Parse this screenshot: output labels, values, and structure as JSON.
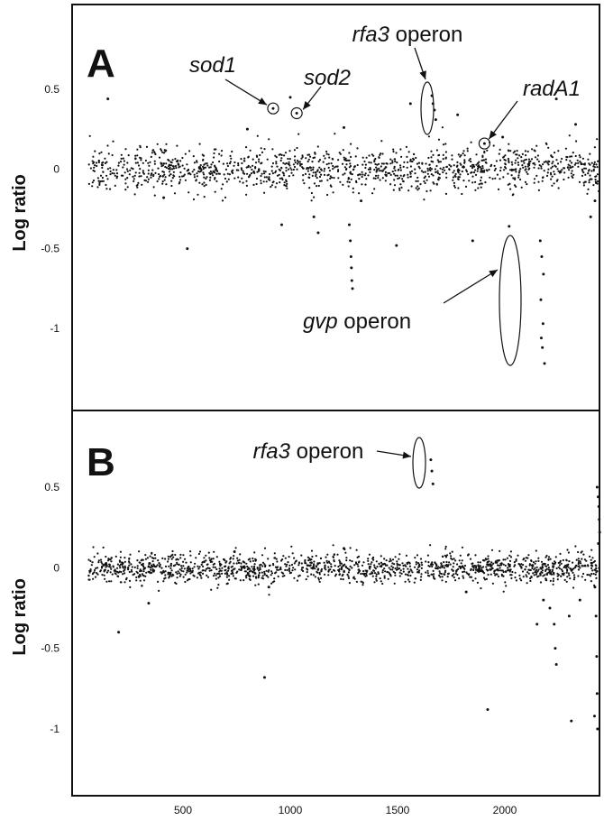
{
  "chart_data": [
    {
      "type": "scatter",
      "panel_label": "A",
      "ylabel": "Log ratio",
      "xlim": [
        50,
        2450
      ],
      "ylim": [
        -1.5,
        0.95
      ],
      "yticks": [
        0.5,
        0,
        -0.5,
        -1
      ],
      "ytick_labels": [
        "0.5",
        "0",
        "-0.5",
        "-1"
      ],
      "baseline_noise": {
        "x_range": [
          60,
          2440
        ],
        "center": 0.0,
        "spread": 0.07,
        "count": 1300
      },
      "points": [
        {
          "x": 920,
          "y": 0.38
        },
        {
          "x": 1030,
          "y": 0.35
        },
        {
          "x": 1905,
          "y": 0.16
        },
        {
          "x": 1660,
          "y": 0.46
        },
        {
          "x": 1665,
          "y": 0.41
        },
        {
          "x": 1672,
          "y": 0.37
        },
        {
          "x": 1678,
          "y": 0.31
        },
        {
          "x": 2165,
          "y": -0.45
        },
        {
          "x": 2172,
          "y": -0.55
        },
        {
          "x": 2180,
          "y": -0.66
        },
        {
          "x": 2168,
          "y": -0.82
        },
        {
          "x": 2178,
          "y": -0.97
        },
        {
          "x": 2170,
          "y": -1.06
        },
        {
          "x": 2175,
          "y": -1.12
        },
        {
          "x": 2185,
          "y": -1.22
        },
        {
          "x": 1275,
          "y": -0.35
        },
        {
          "x": 1280,
          "y": -0.45
        },
        {
          "x": 1283,
          "y": -0.55
        },
        {
          "x": 1285,
          "y": -0.62
        },
        {
          "x": 1287,
          "y": -0.7
        },
        {
          "x": 1290,
          "y": -0.75
        },
        {
          "x": 1130,
          "y": -0.4
        },
        {
          "x": 1110,
          "y": -0.3
        },
        {
          "x": 1330,
          "y": -0.2
        },
        {
          "x": 520,
          "y": -0.5
        },
        {
          "x": 410,
          "y": -0.18
        },
        {
          "x": 960,
          "y": -0.35
        },
        {
          "x": 1495,
          "y": -0.48
        },
        {
          "x": 1850,
          "y": -0.45
        },
        {
          "x": 2020,
          "y": -0.36
        },
        {
          "x": 2420,
          "y": -0.2
        },
        {
          "x": 2400,
          "y": -0.3
        },
        {
          "x": 150,
          "y": 0.44
        },
        {
          "x": 1000,
          "y": 0.45
        },
        {
          "x": 1560,
          "y": 0.41
        },
        {
          "x": 2240,
          "y": 0.44
        },
        {
          "x": 1780,
          "y": 0.34
        },
        {
          "x": 1250,
          "y": 0.26
        },
        {
          "x": 800,
          "y": 0.25
        },
        {
          "x": 2330,
          "y": 0.28
        },
        {
          "x": 1990,
          "y": 0.2
        }
      ],
      "annotations": [
        {
          "text": "sod1",
          "italic": true,
          "x": 920,
          "y": 0.38
        },
        {
          "text": "sod2",
          "italic": true,
          "x": 1030,
          "y": 0.35
        },
        {
          "text_italic": "rfa3",
          "text": " operon",
          "x": 1668,
          "y": 0.39
        },
        {
          "text": "radA1",
          "italic": true,
          "x": 1905,
          "y": 0.16
        },
        {
          "text_italic": "gvp",
          "text": " operon",
          "x": 2172,
          "y": -0.83
        }
      ]
    },
    {
      "type": "scatter",
      "panel_label": "B",
      "ylabel": "Log ratio",
      "xlim": [
        50,
        2450
      ],
      "ylim": [
        -1.46,
        0.85
      ],
      "yticks": [
        0.5,
        0,
        -0.5,
        -1
      ],
      "ytick_labels": [
        "0.5",
        "0",
        "-0.5",
        "-1"
      ],
      "xticks": [
        500,
        1000,
        1500,
        2000
      ],
      "xtick_labels": [
        "500",
        "1000",
        "1500",
        "2000"
      ],
      "baseline_noise": {
        "x_range": [
          60,
          2440
        ],
        "center": 0.0,
        "spread": 0.045,
        "count": 1500
      },
      "points": [
        {
          "x": 1655,
          "y": 0.67
        },
        {
          "x": 1660,
          "y": 0.6
        },
        {
          "x": 1665,
          "y": 0.52
        },
        {
          "x": 2430,
          "y": 0.5
        },
        {
          "x": 2435,
          "y": 0.44
        },
        {
          "x": 2438,
          "y": 0.38
        },
        {
          "x": 2440,
          "y": 0.3
        },
        {
          "x": 2442,
          "y": 0.22
        },
        {
          "x": 2436,
          "y": 0.15
        },
        {
          "x": 2420,
          "y": -0.12
        },
        {
          "x": 2425,
          "y": -0.3
        },
        {
          "x": 2428,
          "y": -0.55
        },
        {
          "x": 2430,
          "y": -0.78
        },
        {
          "x": 2432,
          "y": -1.0
        },
        {
          "x": 2418,
          "y": -0.92
        },
        {
          "x": 2230,
          "y": -0.35
        },
        {
          "x": 2235,
          "y": -0.5
        },
        {
          "x": 2240,
          "y": -0.6
        },
        {
          "x": 2210,
          "y": -0.25
        },
        {
          "x": 2300,
          "y": -0.3
        },
        {
          "x": 2310,
          "y": -0.95
        },
        {
          "x": 2180,
          "y": -0.2
        },
        {
          "x": 2150,
          "y": -0.35
        },
        {
          "x": 2350,
          "y": -0.2
        },
        {
          "x": 1920,
          "y": -0.88
        },
        {
          "x": 880,
          "y": -0.68
        },
        {
          "x": 200,
          "y": -0.4
        },
        {
          "x": 340,
          "y": -0.22
        },
        {
          "x": 900,
          "y": -0.12
        },
        {
          "x": 1820,
          "y": -0.15
        },
        {
          "x": 1250,
          "y": 0.12
        },
        {
          "x": 740,
          "y": 0.1
        }
      ],
      "annotations": [
        {
          "text_italic": "rfa3",
          "text": " operon",
          "x": 1660,
          "y": 0.6
        }
      ]
    }
  ]
}
